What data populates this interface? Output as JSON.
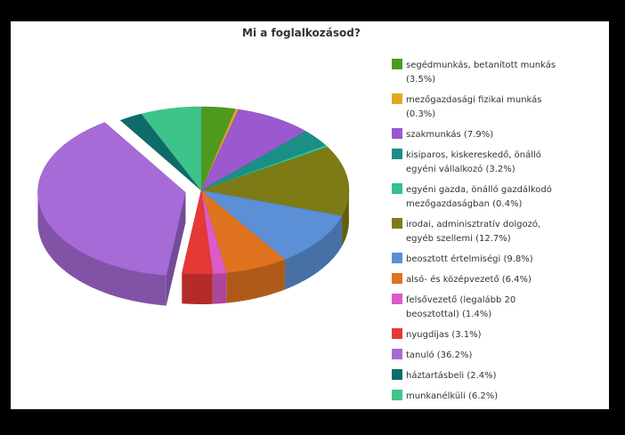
{
  "chart_data": {
    "type": "pie",
    "title": "Mi a foglalkozásod?",
    "legend_position": "right",
    "slices": [
      {
        "lines": [
          "segédmunkás, betanított munkás",
          "(3.5%)"
        ],
        "value": 3.5,
        "color": "#4e9a1e"
      },
      {
        "lines": [
          "mezőgazdasági fizikai munkás",
          "(0.3%)"
        ],
        "value": 0.3,
        "color": "#e1a820"
      },
      {
        "lines": [
          "szakmunkás (7.9%)"
        ],
        "value": 7.9,
        "color": "#9b59cf"
      },
      {
        "lines": [
          "kisiparos, kiskereskedő, önálló",
          "egyéni vállalkozó (3.2%)"
        ],
        "value": 3.2,
        "color": "#1b8f86"
      },
      {
        "lines": [
          "egyéni gazda, önálló gazdálkodó",
          "mezőgazdaságban (0.4%)"
        ],
        "value": 0.4,
        "color": "#34c28a"
      },
      {
        "lines": [
          "irodai, adminisztratív dolgozó,",
          "egyéb szellemi (12.7%)"
        ],
        "value": 12.7,
        "color": "#7d7b16"
      },
      {
        "lines": [
          "beosztott értelmiségi (9.8%)"
        ],
        "value": 9.8,
        "color": "#5b8fd6"
      },
      {
        "lines": [
          "alsó- és középvezető (6.4%)"
        ],
        "value": 6.4,
        "color": "#e0731f"
      },
      {
        "lines": [
          "felsővezető (legalább 20",
          "beosztottal) (1.4%)"
        ],
        "value": 1.4,
        "color": "#dd5bc8"
      },
      {
        "lines": [
          "nyugdíjas (3.1%)"
        ],
        "value": 3.1,
        "color": "#e53935"
      },
      {
        "lines": [
          "tanuló (36.2%)"
        ],
        "value": 36.2,
        "color": "#a66bd6"
      },
      {
        "lines": [
          "háztartásbeli (2.4%)"
        ],
        "value": 2.4,
        "color": "#0f6b68"
      },
      {
        "lines": [
          "munkanélküli (6.2%)"
        ],
        "value": 6.2,
        "color": "#3ec48b"
      }
    ]
  }
}
